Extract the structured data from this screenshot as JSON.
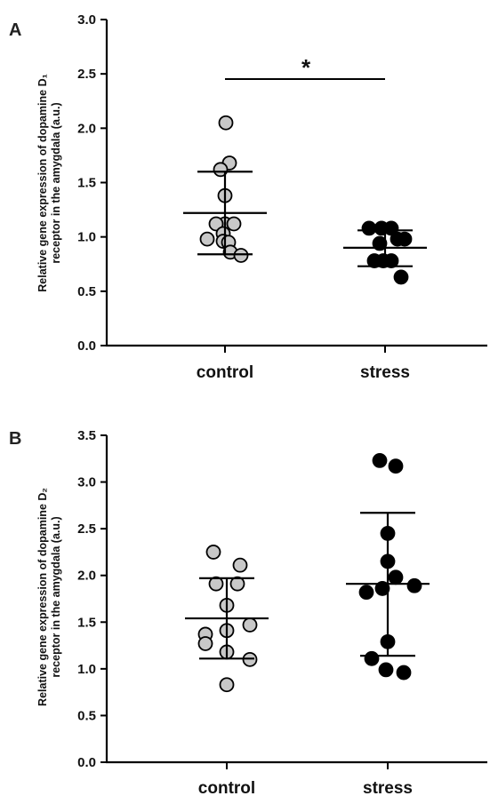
{
  "chart_data": [
    {
      "type": "scatter",
      "panel": "A",
      "ylabel_line1": "Relative gene expression of dopamine D₁",
      "ylabel_line2": "receptor in the amygdala (a.u.)",
      "ylim": [
        0,
        3.0
      ],
      "yticks": [
        "0.0",
        "0.5",
        "1.0",
        "1.5",
        "2.0",
        "2.5",
        "3.0"
      ],
      "ytick_values": [
        0,
        0.5,
        1.0,
        1.5,
        2.0,
        2.5,
        3.0
      ],
      "categories": [
        "control",
        "stress"
      ],
      "significance": "*",
      "groups": [
        {
          "category": "control",
          "color": "#c8c8c8",
          "mean": 1.22,
          "sd_low": 0.84,
          "sd_high": 1.6,
          "points": [
            {
              "offset": 0.05,
              "y": 2.05
            },
            {
              "offset": 0.25,
              "y": 1.68
            },
            {
              "offset": -0.25,
              "y": 1.62
            },
            {
              "offset": 0.0,
              "y": 1.38
            },
            {
              "offset": 0.0,
              "y": 1.12
            },
            {
              "offset": 0.5,
              "y": 1.12
            },
            {
              "offset": -0.5,
              "y": 1.12
            },
            {
              "offset": -0.1,
              "y": 1.03
            },
            {
              "offset": -1.0,
              "y": 0.98
            },
            {
              "offset": -0.1,
              "y": 0.96
            },
            {
              "offset": 0.2,
              "y": 0.95
            },
            {
              "offset": 0.3,
              "y": 0.86
            },
            {
              "offset": 0.9,
              "y": 0.83
            }
          ]
        },
        {
          "category": "stress",
          "color": "#000000",
          "mean": 0.9,
          "sd_low": 0.73,
          "sd_high": 1.06,
          "points": [
            {
              "offset": -0.9,
              "y": 1.08
            },
            {
              "offset": -0.2,
              "y": 1.08
            },
            {
              "offset": 0.35,
              "y": 1.08
            },
            {
              "offset": 0.7,
              "y": 0.98
            },
            {
              "offset": 1.1,
              "y": 0.98
            },
            {
              "offset": -0.3,
              "y": 0.94
            },
            {
              "offset": -0.6,
              "y": 0.78
            },
            {
              "offset": -0.1,
              "y": 0.78
            },
            {
              "offset": 0.35,
              "y": 0.78
            },
            {
              "offset": 0.9,
              "y": 0.63
            }
          ]
        }
      ]
    },
    {
      "type": "scatter",
      "panel": "B",
      "ylabel_line1": "Relative gene expression of dopamine D₂",
      "ylabel_line2": "receptor in the amygdala (a.u.)",
      "ylim": [
        0,
        3.5
      ],
      "yticks": [
        "0.0",
        "0.5",
        "1.0",
        "1.5",
        "2.0",
        "2.5",
        "3.0",
        "3.5"
      ],
      "ytick_values": [
        0,
        0.5,
        1.0,
        1.5,
        2.0,
        2.5,
        3.0,
        3.5
      ],
      "categories": [
        "control",
        "stress"
      ],
      "groups": [
        {
          "category": "control",
          "color": "#c8c8c8",
          "mean": 1.54,
          "sd_low": 1.11,
          "sd_high": 1.97,
          "points": [
            {
              "offset": -0.75,
              "y": 2.25
            },
            {
              "offset": 0.75,
              "y": 2.11
            },
            {
              "offset": -0.6,
              "y": 1.91
            },
            {
              "offset": 0.6,
              "y": 1.91
            },
            {
              "offset": 0.0,
              "y": 1.68
            },
            {
              "offset": -1.2,
              "y": 1.37
            },
            {
              "offset": 1.3,
              "y": 1.47
            },
            {
              "offset": 0.0,
              "y": 1.41
            },
            {
              "offset": -1.2,
              "y": 1.27
            },
            {
              "offset": 0.0,
              "y": 1.18
            },
            {
              "offset": 1.3,
              "y": 1.1
            },
            {
              "offset": 0.0,
              "y": 0.83
            }
          ]
        },
        {
          "category": "stress",
          "color": "#000000",
          "mean": 1.91,
          "sd_low": 1.14,
          "sd_high": 2.67,
          "points": [
            {
              "offset": -0.45,
              "y": 3.23
            },
            {
              "offset": 0.45,
              "y": 3.17
            },
            {
              "offset": 0.0,
              "y": 2.45
            },
            {
              "offset": 0.0,
              "y": 2.15
            },
            {
              "offset": 0.45,
              "y": 1.98
            },
            {
              "offset": 1.5,
              "y": 1.89
            },
            {
              "offset": -0.3,
              "y": 1.86
            },
            {
              "offset": -1.2,
              "y": 1.82
            },
            {
              "offset": 0.0,
              "y": 1.29
            },
            {
              "offset": -0.9,
              "y": 1.11
            },
            {
              "offset": -0.1,
              "y": 0.99
            },
            {
              "offset": 0.9,
              "y": 0.96
            }
          ]
        }
      ]
    }
  ]
}
